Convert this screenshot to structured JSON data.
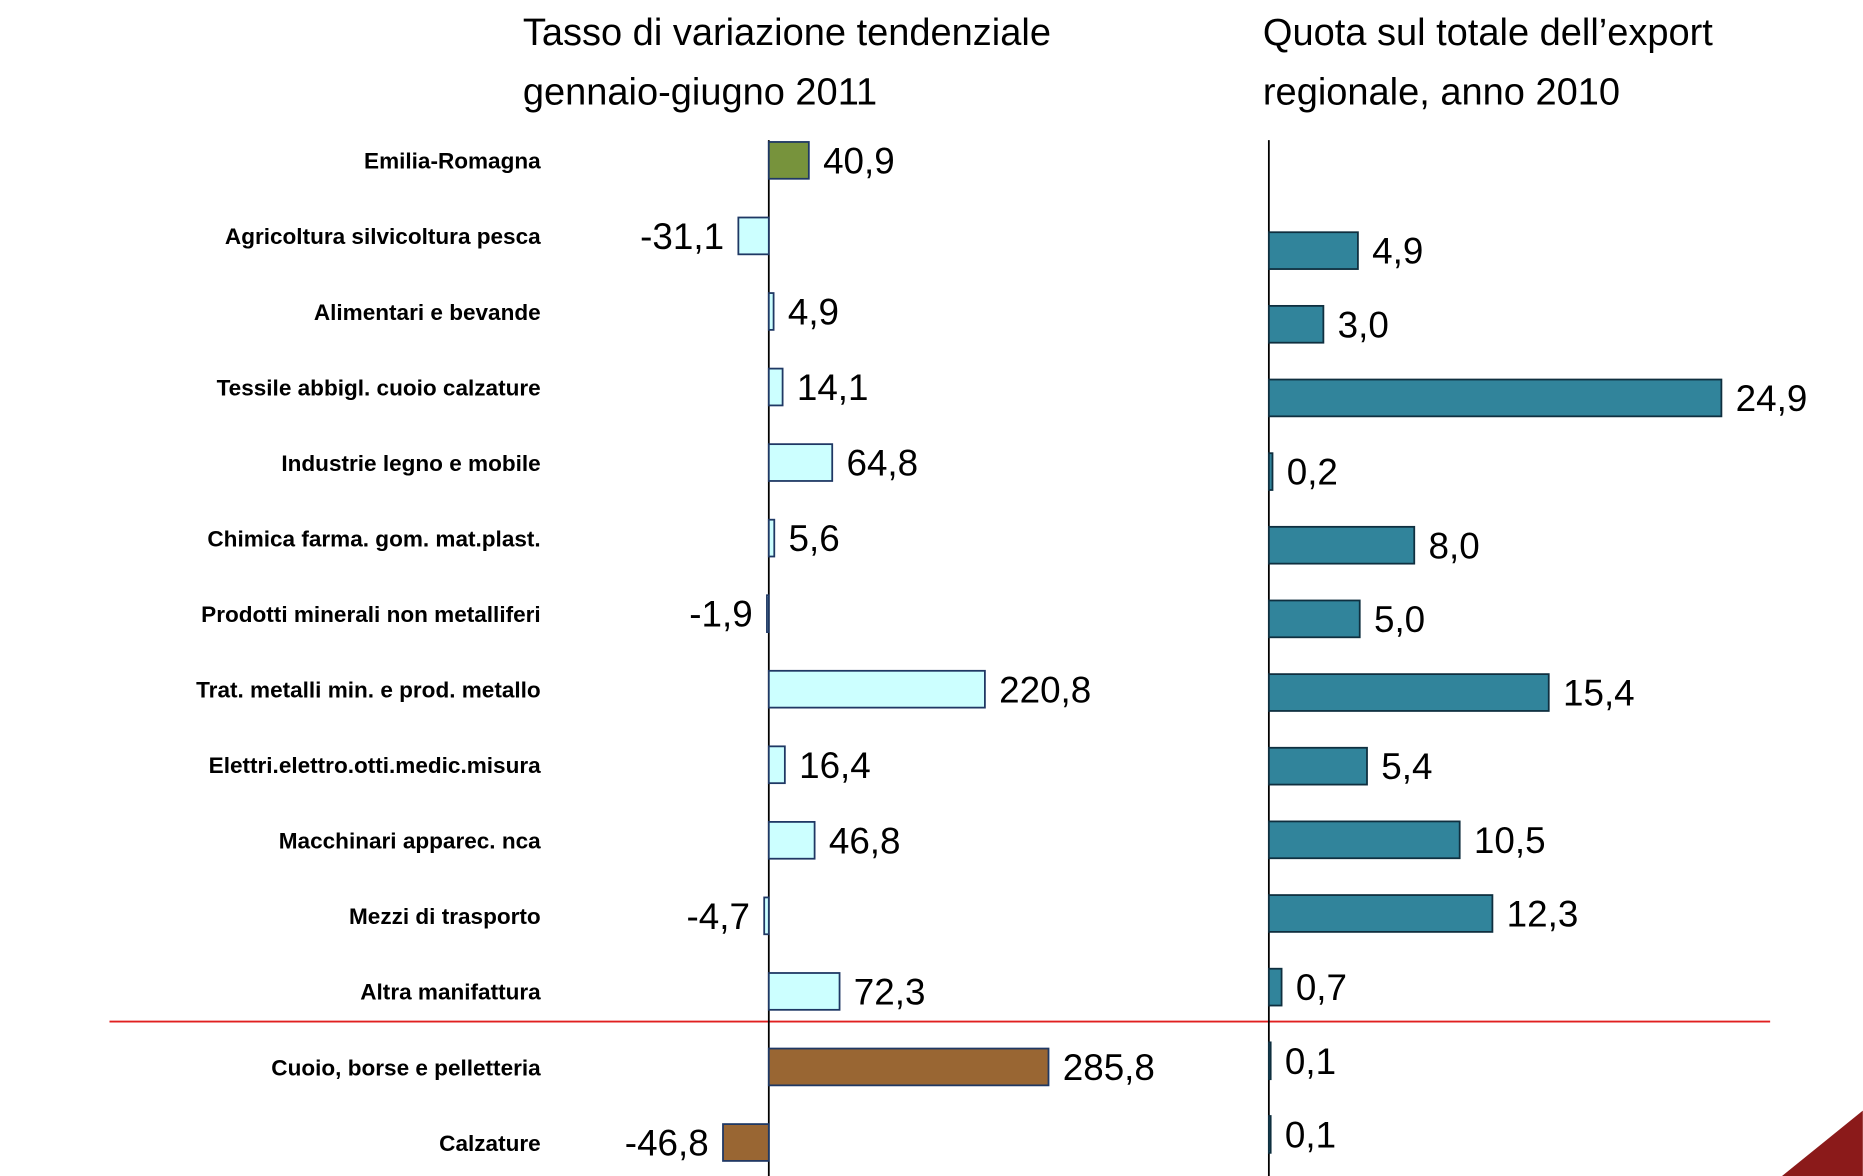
{
  "chart_data": {
    "type": "bar",
    "orientation": "horizontal",
    "categories": [
      "Emilia-Romagna",
      "Agricoltura silvicoltura pesca",
      "Alimentari e bevande",
      "Tessile abbigl. cuoio calzature",
      "Industrie legno e mobile",
      "Chimica farma. gom. mat.plast.",
      "Prodotti minerali non metalliferi",
      "Trat. metalli min. e prod. metallo",
      "Elettri.elettro.otti.medic.misura",
      "Macchinari apparec. nca",
      "Mezzi di trasporto",
      "Altra manifattura",
      "Cuoio, borse e pelletteria",
      "Calzature"
    ],
    "series": [
      {
        "name": [
          "Tasso di variazione tendenziale",
          "gennaio-giugno 2011"
        ],
        "values": [
          40.9,
          -31.1,
          4.9,
          14.1,
          64.8,
          5.6,
          -1.9,
          220.8,
          16.4,
          46.8,
          -4.7,
          72.3,
          285.8,
          -46.8
        ],
        "value_labels": [
          "40,9",
          "-31,1",
          "4,9",
          "14,1",
          "64,8",
          "5,6",
          "-1,9",
          "220,8",
          "16,4",
          "46,8",
          "-4,7",
          "72,3",
          "285,8",
          "-46,8"
        ],
        "colors": [
          "#77933c",
          "#ccffff",
          "#ccffff",
          "#ccffff",
          "#ccffff",
          "#ccffff",
          "#ccffff",
          "#ccffff",
          "#ccffff",
          "#ccffff",
          "#ccffff",
          "#ccffff",
          "#996633",
          "#996633"
        ],
        "xlim": [
          -60,
          300
        ]
      },
      {
        "name": [
          "Quota sul totale dell’export",
          "regionale, anno 2010"
        ],
        "values": [
          null,
          4.9,
          3.0,
          24.9,
          0.2,
          8.0,
          5.0,
          15.4,
          5.4,
          10.5,
          12.3,
          0.7,
          0.1,
          0.1
        ],
        "value_labels": [
          null,
          "4,9",
          "3,0",
          "24,9",
          "0,2",
          "8,0",
          "5,0",
          "15,4",
          "5,4",
          "10,5",
          "12,3",
          "0,7",
          "0,1",
          "0,1"
        ],
        "color": "#31849b",
        "xlim": [
          0,
          28
        ]
      }
    ]
  }
}
